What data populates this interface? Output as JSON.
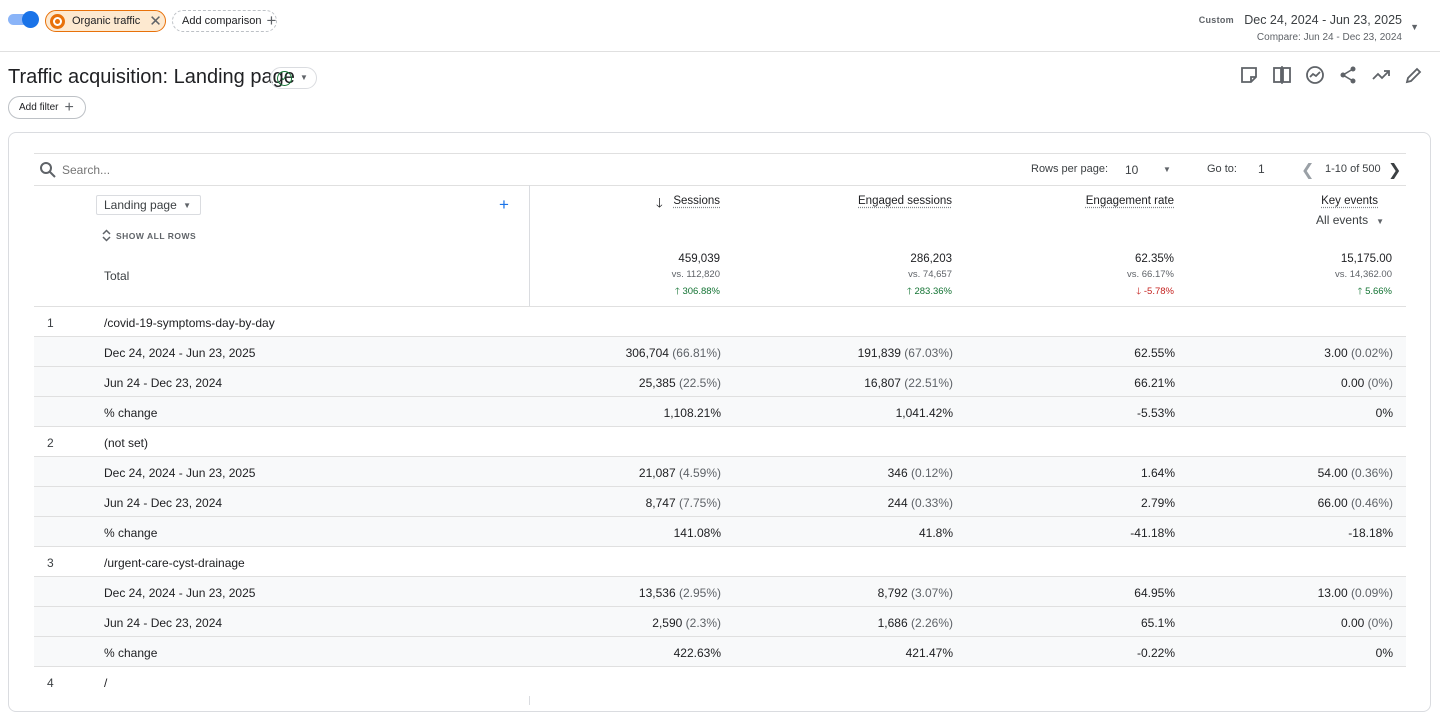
{
  "topbar": {
    "segment_chip_label": "Organic traffic",
    "add_comparison_label": "Add comparison",
    "date_mode": "Custom",
    "date_range": "Dec 24, 2024 - Jun 23, 2025",
    "compare_range": "Compare: Jun 24 - Dec 23, 2024"
  },
  "header": {
    "title": "Traffic acquisition: Landing page",
    "add_filter_label": "Add filter",
    "toolbar_icons": [
      "annotation-icon",
      "compare-columns-icon",
      "insights-icon",
      "share-icon",
      "trend-icon",
      "edit-icon"
    ]
  },
  "table_controls": {
    "search_placeholder": "Search...",
    "rows_per_page_label": "Rows per page:",
    "rows_per_page_value": "10",
    "goto_label": "Go to:",
    "goto_value": "1",
    "range_text": "1-10 of 500"
  },
  "columns": {
    "dimension": "Landing page",
    "show_all_rows": "SHOW ALL ROWS",
    "sessions": "Sessions",
    "engaged_sessions": "Engaged sessions",
    "engagement_rate": "Engagement rate",
    "key_events": "Key events",
    "key_events_sub": "All events"
  },
  "totals": {
    "label": "Total",
    "sessions": {
      "value": "459,039",
      "vs": "vs. 112,820",
      "change": "306.88%",
      "direction": "up"
    },
    "engaged_sessions": {
      "value": "286,203",
      "vs": "vs. 74,657",
      "change": "283.36%",
      "direction": "up"
    },
    "engagement_rate": {
      "value": "62.35%",
      "vs": "vs. 66.17%",
      "change": "-5.78%",
      "direction": "down"
    },
    "key_events": {
      "value": "15,175.00",
      "vs": "vs. 14,362.00",
      "change": "5.66%",
      "direction": "up"
    }
  },
  "rows": [
    {
      "idx": "1",
      "label": "/covid-19-symptoms-day-by-day",
      "s": "",
      "sp": "",
      "e": "",
      "ep": "",
      "r": "",
      "k": "",
      "kp": ""
    },
    {
      "idx": "",
      "label": "Dec 24, 2024 - Jun 23, 2025",
      "s": "306,704",
      "sp": "(66.81%)",
      "e": "191,839",
      "ep": "(67.03%)",
      "r": "62.55%",
      "k": "3.00",
      "kp": "(0.02%)"
    },
    {
      "idx": "",
      "label": "Jun 24 - Dec 23, 2024",
      "s": "25,385",
      "sp": "(22.5%)",
      "e": "16,807",
      "ep": "(22.51%)",
      "r": "66.21%",
      "k": "0.00",
      "kp": "(0%)"
    },
    {
      "idx": "",
      "label": "% change",
      "s": "1,108.21%",
      "sp": "",
      "e": "1,041.42%",
      "ep": "",
      "r": "-5.53%",
      "k": "0%",
      "kp": ""
    },
    {
      "idx": "2",
      "label": "(not set)",
      "s": "",
      "sp": "",
      "e": "",
      "ep": "",
      "r": "",
      "k": "",
      "kp": ""
    },
    {
      "idx": "",
      "label": "Dec 24, 2024 - Jun 23, 2025",
      "s": "21,087",
      "sp": "(4.59%)",
      "e": "346",
      "ep": "(0.12%)",
      "r": "1.64%",
      "k": "54.00",
      "kp": "(0.36%)"
    },
    {
      "idx": "",
      "label": "Jun 24 - Dec 23, 2024",
      "s": "8,747",
      "sp": "(7.75%)",
      "e": "244",
      "ep": "(0.33%)",
      "r": "2.79%",
      "k": "66.00",
      "kp": "(0.46%)"
    },
    {
      "idx": "",
      "label": "% change",
      "s": "141.08%",
      "sp": "",
      "e": "41.8%",
      "ep": "",
      "r": "-41.18%",
      "k": "-18.18%",
      "kp": ""
    },
    {
      "idx": "3",
      "label": "/urgent-care-cyst-drainage",
      "s": "",
      "sp": "",
      "e": "",
      "ep": "",
      "r": "",
      "k": "",
      "kp": ""
    },
    {
      "idx": "",
      "label": "Dec 24, 2024 - Jun 23, 2025",
      "s": "13,536",
      "sp": "(2.95%)",
      "e": "8,792",
      "ep": "(3.07%)",
      "r": "64.95%",
      "k": "13.00",
      "kp": "(0.09%)"
    },
    {
      "idx": "",
      "label": "Jun 24 - Dec 23, 2024",
      "s": "2,590",
      "sp": "(2.3%)",
      "e": "1,686",
      "ep": "(2.26%)",
      "r": "65.1%",
      "k": "0.00",
      "kp": "(0%)"
    },
    {
      "idx": "",
      "label": "% change",
      "s": "422.63%",
      "sp": "",
      "e": "421.47%",
      "ep": "",
      "r": "-0.22%",
      "k": "0%",
      "kp": ""
    },
    {
      "idx": "4",
      "label": "/",
      "s": "",
      "sp": "",
      "e": "",
      "ep": "",
      "r": "",
      "k": "",
      "kp": ""
    }
  ],
  "colors": {
    "accent": "#1a73e8",
    "segment": "#e8710a",
    "positive": "#137333",
    "negative": "#c5221f"
  }
}
